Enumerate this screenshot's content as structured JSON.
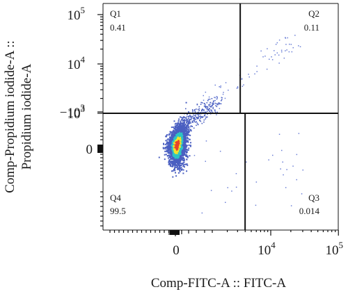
{
  "chart_data": {
    "type": "scatter",
    "subtype": "flow-cytometry-density-dot-plot",
    "xlabel": "Comp-FITC-A :: FITC-A",
    "ylabel_line1": "Comp-Propidium iodide-A ::",
    "ylabel_line2": "Propidium iodide-A",
    "x_axis": {
      "scale": "biexponential",
      "range": [
        -2000,
        100000
      ],
      "ticks": [
        {
          "value": 0,
          "label": "0"
        },
        {
          "value": 10000,
          "label": "10",
          "exp": "4"
        },
        {
          "value": 100000,
          "label": "10",
          "exp": "5"
        }
      ]
    },
    "y_axis": {
      "scale": "biexponential",
      "range": [
        -2000,
        300000
      ],
      "ticks": [
        {
          "value": -1000,
          "label": "−10",
          "exp": "3"
        },
        {
          "value": 0,
          "label": "0"
        },
        {
          "value": 1000,
          "label": "10",
          "exp": "3"
        },
        {
          "value": 10000,
          "label": "10",
          "exp": "4"
        },
        {
          "value": 100000,
          "label": "10",
          "exp": "5"
        }
      ]
    },
    "gates": {
      "x": 3500,
      "y": 1000
    },
    "quadrants": [
      {
        "name": "Q1",
        "value": "0.41",
        "position": "top-left"
      },
      {
        "name": "Q2",
        "value": "0.11",
        "position": "top-right"
      },
      {
        "name": "Q3",
        "value": "0.014",
        "position": "bottom-right"
      },
      {
        "name": "Q4",
        "value": "99.5",
        "position": "bottom-left"
      }
    ],
    "population": {
      "x_center": 0,
      "y_center": 0
    },
    "colors": {
      "low_density": "#4a5fc1",
      "mid_density": "#2ec4c4",
      "high_density": "#f2e32b",
      "peak_density": "#e8432b",
      "lines": "#111111"
    }
  }
}
